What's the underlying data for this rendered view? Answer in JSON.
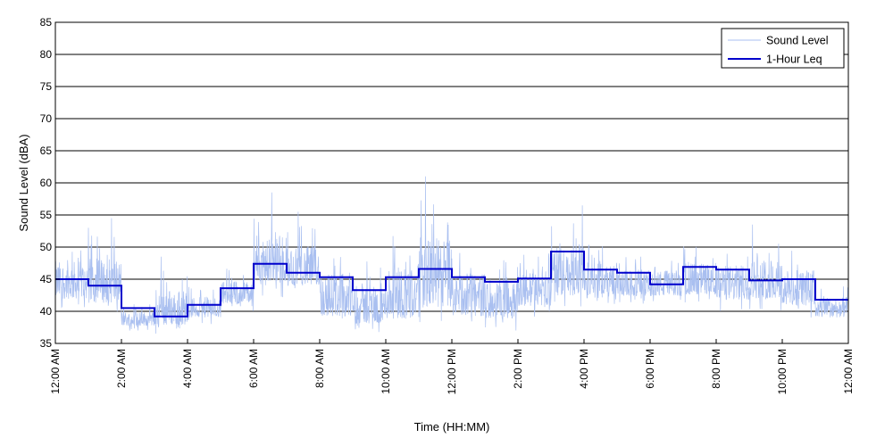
{
  "chart_data": {
    "type": "line",
    "title": "",
    "xlabel": "Time (HH:MM)",
    "ylabel": "Sound Level (dBA)",
    "xlim": [
      0,
      24
    ],
    "ylim": [
      35,
      85
    ],
    "grid": "horizontal",
    "legend_position": "top-right",
    "x_ticks": [
      0,
      2,
      4,
      6,
      8,
      10,
      12,
      14,
      16,
      18,
      20,
      22,
      24
    ],
    "x_tick_labels": [
      "12:00 AM",
      "2:00 AM",
      "4:00 AM",
      "6:00 AM",
      "8:00 AM",
      "10:00 AM",
      "12:00 PM",
      "2:00 PM",
      "4:00 PM",
      "6:00 PM",
      "8:00 PM",
      "10:00 PM",
      "12:00 AM"
    ],
    "y_ticks": [
      35,
      40,
      45,
      50,
      55,
      60,
      65,
      70,
      75,
      80,
      85
    ],
    "y_tick_labels": [
      "35",
      "40",
      "45",
      "50",
      "55",
      "60",
      "65",
      "70",
      "75",
      "80",
      "85"
    ],
    "series": [
      {
        "name": "Sound Level",
        "style": "thin-line",
        "color": "#a9bff0",
        "hour_bands": [
          [
            40,
            53
          ],
          [
            39,
            54.5
          ],
          [
            37,
            42
          ],
          [
            36,
            48.5
          ],
          [
            38,
            45
          ],
          [
            40,
            48
          ],
          [
            42,
            58.5
          ],
          [
            42,
            55.5
          ],
          [
            37,
            52
          ],
          [
            36,
            50
          ],
          [
            36,
            55
          ],
          [
            37,
            61
          ],
          [
            37,
            52
          ],
          [
            37,
            50
          ],
          [
            39,
            51
          ],
          [
            40,
            56.5
          ],
          [
            41,
            52
          ],
          [
            41,
            50
          ],
          [
            41,
            50
          ],
          [
            41,
            52
          ],
          [
            40,
            52
          ],
          [
            40,
            53.5
          ],
          [
            39,
            51.5
          ],
          [
            38,
            45
          ]
        ],
        "peaks": [
          {
            "x": 1.0,
            "y": 53
          },
          {
            "x": 1.7,
            "y": 54.5
          },
          {
            "x": 3.2,
            "y": 48.5
          },
          {
            "x": 6.55,
            "y": 58.5
          },
          {
            "x": 7.35,
            "y": 55.5
          },
          {
            "x": 11.2,
            "y": 61
          },
          {
            "x": 15.95,
            "y": 56.5
          },
          {
            "x": 21.1,
            "y": 53.5
          }
        ]
      },
      {
        "name": "1-Hour Leq",
        "style": "step",
        "color": "#0000cc",
        "x": [
          0,
          1,
          2,
          3,
          4,
          5,
          6,
          7,
          8,
          9,
          10,
          11,
          12,
          13,
          14,
          15,
          16,
          17,
          18,
          19,
          20,
          21,
          22,
          23
        ],
        "values": [
          45.0,
          44.0,
          40.5,
          39.2,
          41.0,
          43.6,
          47.4,
          46.0,
          45.3,
          43.3,
          45.3,
          46.6,
          45.3,
          44.6,
          45.1,
          49.3,
          46.5,
          46.0,
          44.2,
          46.9,
          46.5,
          44.8,
          45.0,
          41.8
        ]
      }
    ]
  }
}
